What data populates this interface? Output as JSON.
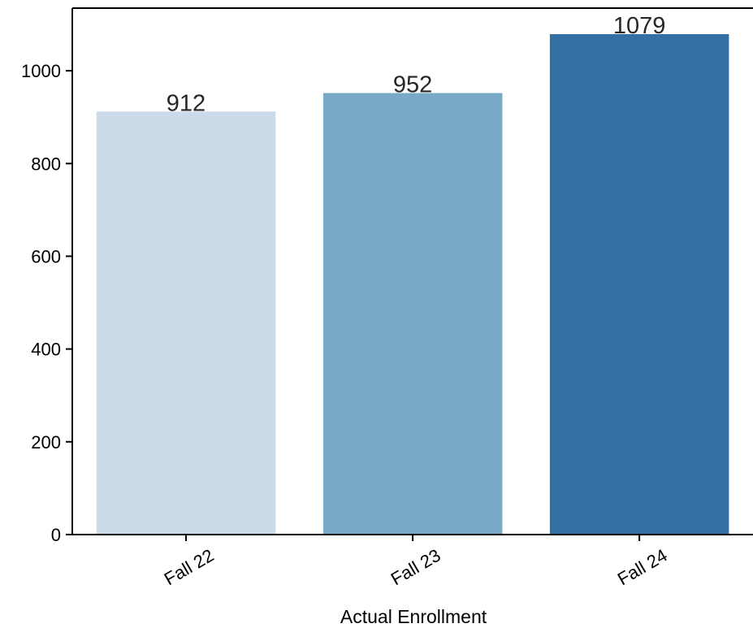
{
  "chart_data": {
    "type": "bar",
    "categories": [
      "Fall 22",
      "Fall 23",
      "Fall 24"
    ],
    "values": [
      912,
      952,
      1079
    ],
    "data_labels": [
      "912",
      "952",
      "1079"
    ],
    "colors": [
      "#cbdbea",
      "#78aac8",
      "#3470a2"
    ],
    "title": "",
    "xlabel": "Actual Enrollment",
    "ylabel": "",
    "ylim": [
      0,
      1135
    ],
    "yticks": [
      0,
      200,
      400,
      600,
      800,
      1000
    ],
    "ytick_labels": [
      "0",
      "200",
      "400",
      "600",
      "800",
      "1000"
    ],
    "grid": false,
    "legend": "none"
  }
}
